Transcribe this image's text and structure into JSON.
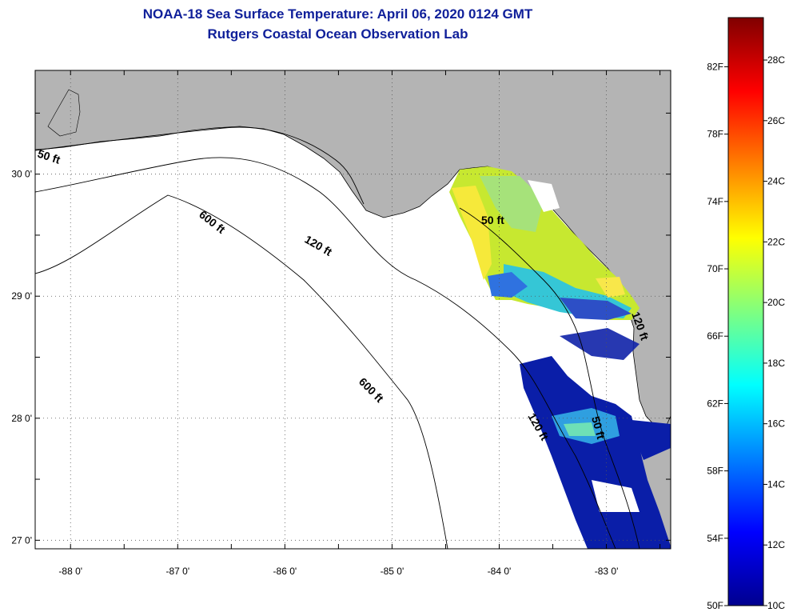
{
  "title": {
    "line1": "NOAA-18 Sea Surface Temperature:  April 06, 2020 0124 GMT",
    "line2": "Rutgers Coastal Ocean Observation Lab"
  },
  "map": {
    "lon_range": [
      -88.33,
      -82.4
    ],
    "lat_range": [
      26.93,
      30.85
    ],
    "lat_ticks": [
      {
        "value": 30,
        "label": "30 0'"
      },
      {
        "value": 29,
        "label": "29 0'"
      },
      {
        "value": 28,
        "label": "28 0'"
      },
      {
        "value": 27,
        "label": "27 0'"
      }
    ],
    "lon_ticks": [
      {
        "value": -88,
        "label": "-88 0'"
      },
      {
        "value": -87,
        "label": "-87 0'"
      },
      {
        "value": -86,
        "label": "-86 0'"
      },
      {
        "value": -85,
        "label": "-85 0'"
      },
      {
        "value": -84,
        "label": "-84 0'"
      },
      {
        "value": -83,
        "label": "-83 0'"
      }
    ],
    "contour_labels": [
      "50 ft",
      "120 ft",
      "600 ft",
      "600 ft",
      "50 ft",
      "120 ft",
      "50 ft",
      "120 ft"
    ],
    "colors": {
      "land": "#b4b4b4",
      "water": "#ffffff",
      "coast": "#000000"
    }
  },
  "colorbar": {
    "fahrenheit_labels": [
      "82F",
      "78F",
      "74F",
      "70F",
      "66F",
      "62F",
      "58F",
      "54F",
      "50F"
    ],
    "celsius_labels": [
      "28C",
      "26C",
      "24C",
      "22C",
      "20C",
      "18C",
      "16C",
      "14C",
      "12C",
      "10C"
    ],
    "range_c": [
      10,
      29.4
    ],
    "colormap": "jet"
  }
}
